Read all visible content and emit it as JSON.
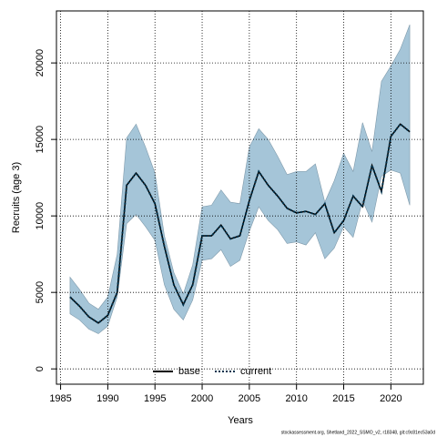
{
  "chart_data": {
    "type": "line",
    "xlabel": "Years",
    "ylabel": "Recruits (age 3)",
    "footer": "stockassessment.org, Shetland_2022_SSMO_v2, r18348, git:c9c81ec53a0d",
    "x": [
      1986,
      1987,
      1988,
      1989,
      1990,
      1991,
      1992,
      1993,
      1994,
      1995,
      1996,
      1997,
      1998,
      1999,
      2000,
      2001,
      2002,
      2003,
      2004,
      2005,
      2006,
      2007,
      2008,
      2009,
      2010,
      2011,
      2012,
      2013,
      2014,
      2015,
      2016,
      2017,
      2018,
      2019,
      2020,
      2021,
      2022
    ],
    "band": {
      "color": "#a5c5d8",
      "edge": "#7f9aab",
      "upper": [
        6000,
        5200,
        4300,
        3900,
        4700,
        7500,
        15100,
        16000,
        14500,
        12800,
        8700,
        6300,
        4900,
        6800,
        10600,
        10700,
        11700,
        10900,
        10800,
        14500,
        15700,
        15000,
        13900,
        12700,
        12900,
        12900,
        13400,
        10900,
        12300,
        14100,
        12900,
        16100,
        14200,
        18800,
        19800,
        20900,
        22500
      ],
      "lower": [
        3600,
        3200,
        2600,
        2300,
        2800,
        4700,
        9500,
        10100,
        9300,
        8400,
        5500,
        3900,
        3200,
        4500,
        7100,
        7200,
        7800,
        6700,
        7100,
        9000,
        10600,
        9700,
        9100,
        8200,
        8300,
        8100,
        8900,
        7200,
        7900,
        9300,
        8600,
        11000,
        9600,
        12600,
        13000,
        12800,
        10700
      ]
    },
    "series": [
      {
        "name": "base",
        "color": "#000000",
        "dash": "solid",
        "values": [
          4700,
          4100,
          3400,
          3000,
          3500,
          5000,
          12000,
          12800,
          12000,
          10800,
          8000,
          5500,
          4200,
          5500,
          8700,
          8700,
          9400,
          8500,
          8700,
          11000,
          12900,
          12000,
          11300,
          10500,
          10200,
          10300,
          10100,
          10800,
          8900,
          9700,
          11300,
          10600,
          13300,
          11600,
          15200,
          16000,
          15500
        ]
      },
      {
        "name": "current",
        "color": "#00334d",
        "dash": "dotted",
        "values": [
          4700,
          4100,
          3400,
          3000,
          3500,
          5000,
          12000,
          12800,
          12000,
          10800,
          8000,
          5500,
          4200,
          5500,
          8700,
          8700,
          9400,
          8500,
          8700,
          11000,
          12900,
          12000,
          11300,
          10500,
          10200,
          10300,
          10100,
          10800,
          8900,
          9700,
          11300,
          10600,
          13300,
          11600,
          15200,
          16000,
          15500
        ]
      }
    ],
    "xlim": [
      1984.56,
      2023.44
    ],
    "ylim": [
      -1000,
      23400
    ],
    "xticks": [
      1985,
      1990,
      1995,
      2000,
      2005,
      2010,
      2015,
      2020
    ],
    "yticks": [
      0,
      5000,
      10000,
      15000,
      20000
    ],
    "grid": true,
    "legend": "bottom"
  }
}
